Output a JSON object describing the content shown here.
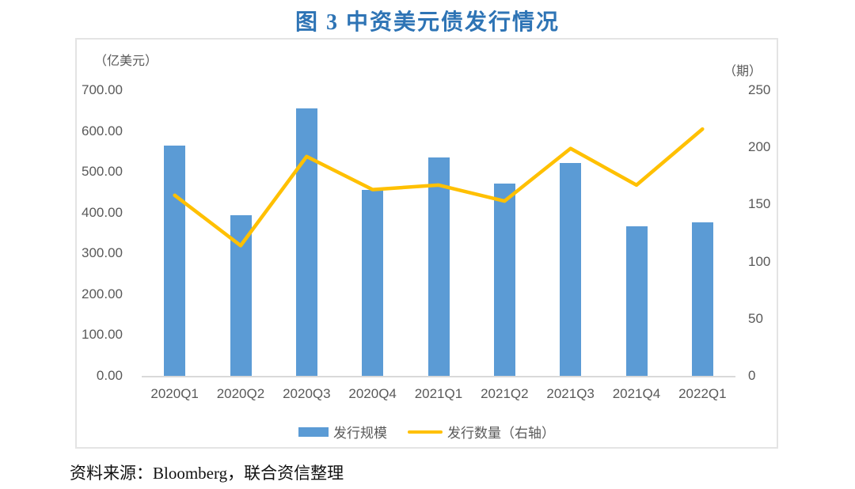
{
  "title": "图 3 中资美元债发行情况",
  "source_note": "资料来源：Bloomberg，联合资信整理",
  "colors": {
    "title": "#2E74B5",
    "bar": "#5B9BD5",
    "line": "#FFC000",
    "axis_text": "#595959",
    "axis_line": "#D9D9D9",
    "frame_border": "#E4E4E4"
  },
  "chart_data": {
    "type": "bar",
    "subtype": "bar+line combo, dual axis",
    "categories": [
      "2020Q1",
      "2020Q2",
      "2020Q3",
      "2020Q4",
      "2021Q1",
      "2021Q2",
      "2021Q3",
      "2021Q4",
      "2022Q1"
    ],
    "series": [
      {
        "name": "发行规模",
        "type": "bar",
        "axis": "left",
        "color": "#5B9BD5",
        "values": [
          565,
          393,
          655,
          455,
          536,
          472,
          522,
          367,
          377
        ]
      },
      {
        "name": "发行数量（右轴）",
        "type": "line",
        "axis": "right",
        "color": "#FFC000",
        "values": [
          158,
          114,
          192,
          163,
          167,
          153,
          199,
          167,
          216
        ]
      }
    ],
    "left_axis": {
      "unit": "（亿美元）",
      "min": 0,
      "max": 700,
      "tick_labels": [
        "700.00",
        "600.00",
        "500.00",
        "400.00",
        "300.00",
        "200.00",
        "100.00",
        "0.00"
      ]
    },
    "right_axis": {
      "unit": "（期）",
      "min": 0,
      "max": 250,
      "tick_labels": [
        "250",
        "200",
        "150",
        "100",
        "50",
        "0"
      ]
    },
    "legend_position": "bottom",
    "grid": false
  }
}
